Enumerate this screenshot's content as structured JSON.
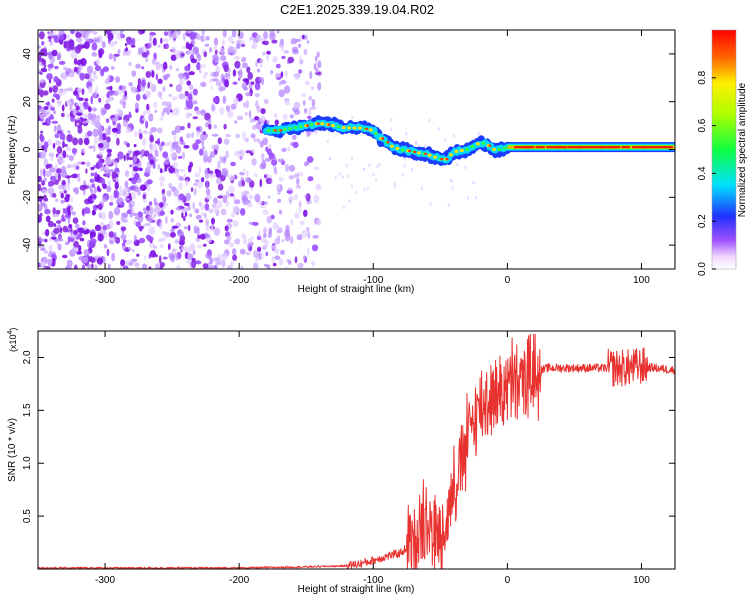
{
  "title": "C2E1.2025.339.19.04.R02",
  "colorbar": {
    "label": "Normalized spectral amplitude",
    "ticks": [
      "0.0",
      "0.2",
      "0.4",
      "0.6",
      "0.8"
    ]
  },
  "chart_data": [
    {
      "type": "heatmap",
      "xlabel": "Height of straight line (km)",
      "ylabel": "Frequency (Hz)",
      "xlim": [
        -350,
        125
      ],
      "ylim": [
        -50,
        50
      ],
      "xticks": [
        "-300",
        "-200",
        "-100",
        "0",
        "100"
      ],
      "yticks": [
        "-40",
        "-20",
        "0",
        "20",
        "40"
      ],
      "colorbar_range": [
        0,
        1
      ],
      "signal_ridge": {
        "x": [
          -180,
          -170,
          -150,
          -140,
          -130,
          -120,
          -110,
          -100,
          -95,
          -90,
          -85,
          -80,
          -70,
          -60,
          -50,
          -45,
          -40,
          -30,
          -20,
          -15,
          -10,
          -5,
          0,
          50,
          100,
          125
        ],
        "y": [
          8,
          8,
          10,
          11,
          10,
          9,
          9,
          8,
          5,
          3,
          1,
          0,
          -1,
          -2,
          -4,
          -4,
          -1,
          0,
          3,
          2,
          0,
          0,
          1,
          1,
          1,
          1
        ]
      }
    },
    {
      "type": "line",
      "xlabel": "Height of straight line (km)",
      "ylabel": "SNR (10 * v/v)",
      "y_multiplier": "(x10",
      "y_multiplier_exponent": "4",
      "xlim": [
        -350,
        125
      ],
      "ylim": [
        0,
        2.25
      ],
      "xticks": [
        "-300",
        "-200",
        "-100",
        "0",
        "100"
      ],
      "yticks": [
        "0.5",
        "1.0",
        "1.5",
        "2.0"
      ],
      "series": [
        {
          "color": "#e8322f",
          "x": [
            -350,
            -200,
            -150,
            -120,
            -110,
            -100,
            -90,
            -80,
            -70,
            -65,
            -60,
            -55,
            -50,
            -45,
            -40,
            -35,
            -30,
            -25,
            -20,
            -15,
            -10,
            -5,
            0,
            10,
            20,
            30,
            40,
            60,
            80,
            90,
            100,
            110,
            125
          ],
          "y": [
            0.01,
            0.01,
            0.02,
            0.03,
            0.05,
            0.08,
            0.12,
            0.15,
            0.25,
            0.45,
            0.55,
            0.3,
            0.3,
            0.5,
            0.8,
            1.0,
            1.2,
            1.45,
            1.55,
            1.6,
            1.65,
            1.7,
            1.72,
            1.78,
            1.85,
            1.9,
            1.9,
            1.9,
            1.9,
            1.9,
            1.92,
            1.9,
            1.88
          ]
        }
      ]
    }
  ]
}
